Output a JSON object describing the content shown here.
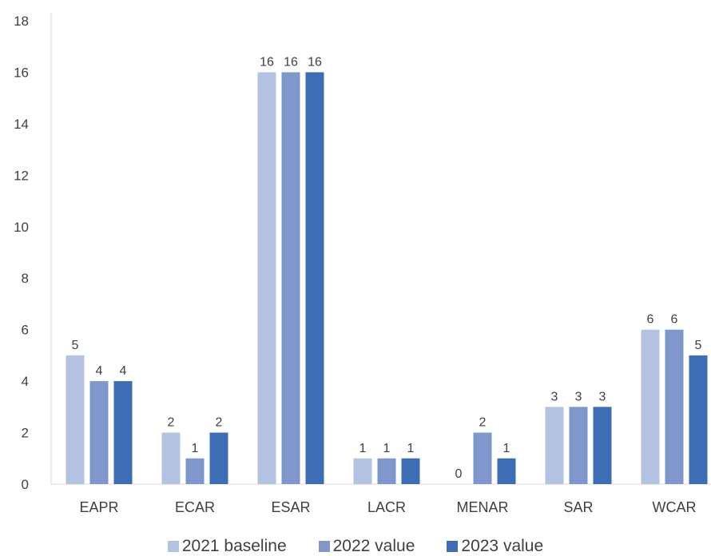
{
  "chart_data": {
    "type": "bar",
    "categories": [
      "EAPR",
      "ECAR",
      "ESAR",
      "LACR",
      "MENAR",
      "SAR",
      "WCAR"
    ],
    "series": [
      {
        "name": "2021 baseline",
        "values": [
          5,
          2,
          16,
          1,
          0,
          3,
          6
        ],
        "color": "#b4c3e1"
      },
      {
        "name": "2022 value",
        "values": [
          4,
          1,
          16,
          1,
          2,
          3,
          6
        ],
        "color": "#7f97cb"
      },
      {
        "name": "2023 value",
        "values": [
          4,
          2,
          16,
          1,
          1,
          3,
          5
        ],
        "color": "#3d6db5"
      }
    ],
    "yticks": [
      0,
      2,
      4,
      6,
      8,
      10,
      12,
      14,
      16,
      18
    ],
    "ylim": [
      0,
      18
    ],
    "title": "",
    "xlabel": "",
    "ylabel": "",
    "grid": false,
    "legend_position": "bottom"
  }
}
